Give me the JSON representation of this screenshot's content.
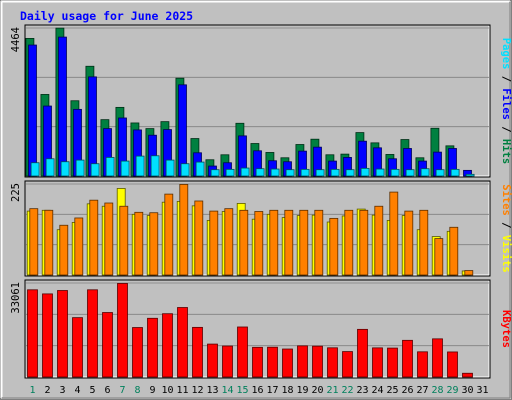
{
  "title": "Daily usage for June 2025",
  "colors": {
    "background": "#C0C0C0",
    "plot_bg": "#C0C0C0",
    "title_text": "#0000FF",
    "hits": "#008040",
    "files": "#0000FF",
    "pages": "#00E0FF",
    "visits": "#FFFF00",
    "sites": "#FF8000",
    "kbytes": "#FF0000",
    "weekend_day": "#00805C",
    "weekday_day": "#000080"
  },
  "chart_data": [
    {
      "type": "bar",
      "title": "",
      "y_max_label": "4464",
      "ylim": [
        0,
        4464
      ],
      "right_labels": [
        "Pages",
        "Files",
        "Hits"
      ],
      "categories": [
        "1",
        "2",
        "3",
        "4",
        "5",
        "6",
        "7",
        "8",
        "9",
        "10",
        "11",
        "12",
        "13",
        "14",
        "15",
        "16",
        "17",
        "18",
        "19",
        "20",
        "21",
        "22",
        "23",
        "24",
        "25",
        "26",
        "27",
        "28",
        "29",
        "30",
        "31"
      ],
      "series": [
        {
          "name": "Hits",
          "values": [
            4150,
            2460,
            4460,
            2270,
            3310,
            1700,
            2070,
            1600,
            1430,
            1640,
            2950,
            1130,
            490,
            640,
            1590,
            980,
            710,
            550,
            950,
            1110,
            640,
            660,
            1310,
            1000,
            650,
            1100,
            550,
            1440,
            910,
            0,
            0
          ]
        },
        {
          "name": "Files",
          "values": [
            3950,
            2110,
            4190,
            2010,
            2990,
            1430,
            1750,
            1390,
            1230,
            1400,
            2750,
            700,
            300,
            400,
            1210,
            760,
            460,
            430,
            750,
            870,
            450,
            560,
            1050,
            850,
            520,
            830,
            450,
            720,
            830,
            170,
            0
          ]
        },
        {
          "name": "Pages",
          "values": [
            400,
            520,
            430,
            480,
            370,
            560,
            450,
            600,
            610,
            480,
            370,
            420,
            190,
            200,
            240,
            220,
            210,
            190,
            200,
            190,
            200,
            190,
            230,
            210,
            200,
            190,
            220,
            190,
            200,
            50,
            0
          ]
        }
      ]
    },
    {
      "type": "bar",
      "title": "",
      "y_max_label": "225",
      "ylim": [
        0,
        225
      ],
      "right_labels": [
        "Sites",
        "Visits"
      ],
      "categories": [
        "1",
        "2",
        "3",
        "4",
        "5",
        "6",
        "7",
        "8",
        "9",
        "10",
        "11",
        "12",
        "13",
        "14",
        "15",
        "16",
        "17",
        "18",
        "19",
        "20",
        "21",
        "22",
        "23",
        "24",
        "25",
        "26",
        "27",
        "28",
        "29",
        "30",
        "31"
      ],
      "series": [
        {
          "name": "Visits",
          "values": [
            158,
            160,
            112,
            130,
            176,
            170,
            214,
            150,
            147,
            180,
            182,
            171,
            135,
            157,
            177,
            138,
            150,
            142,
            147,
            148,
            131,
            146,
            163,
            148,
            135,
            147,
            112,
            95,
            108,
            10,
            0
          ]
        },
        {
          "name": "Sites",
          "values": [
            164,
            160,
            123,
            141,
            185,
            178,
            170,
            155,
            154,
            200,
            224,
            183,
            158,
            164,
            160,
            157,
            160,
            160,
            160,
            160,
            140,
            160,
            160,
            170,
            205,
            158,
            160,
            90,
            118,
            11,
            0
          ]
        }
      ]
    },
    {
      "type": "bar",
      "title": "",
      "y_max_label": "33061",
      "ylim": [
        0,
        33061
      ],
      "right_labels": [
        "KBytes"
      ],
      "categories": [
        "1",
        "2",
        "3",
        "4",
        "5",
        "6",
        "7",
        "8",
        "9",
        "10",
        "11",
        "12",
        "13",
        "14",
        "15",
        "16",
        "17",
        "18",
        "19",
        "20",
        "21",
        "22",
        "23",
        "24",
        "25",
        "26",
        "27",
        "28",
        "29",
        "30",
        "31"
      ],
      "series": [
        {
          "name": "KBytes",
          "values": [
            30670,
            29230,
            30420,
            20880,
            30670,
            22680,
            32900,
            17400,
            20650,
            22260,
            24440,
            17460,
            11580,
            10900,
            17590,
            10440,
            10480,
            9840,
            10960,
            10850,
            10270,
            8940,
            16760,
            10250,
            10170,
            12900,
            8860,
            13420,
            8810,
            1320,
            0
          ]
        }
      ]
    }
  ]
}
